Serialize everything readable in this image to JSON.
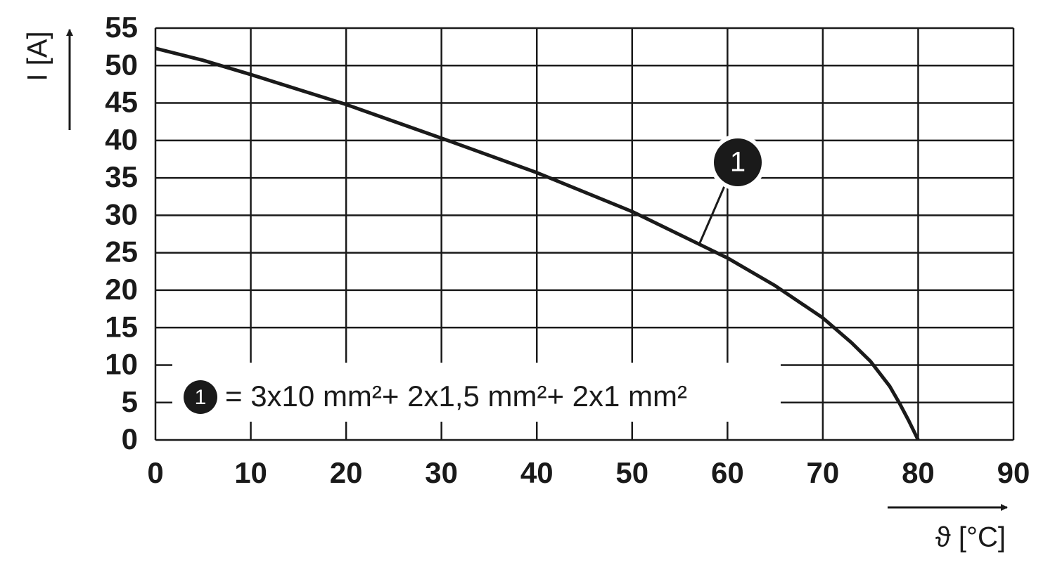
{
  "chart_data": {
    "type": "line",
    "x_label": "ϑ [°C]",
    "y_label": "I [A]",
    "xlim": [
      0,
      90
    ],
    "xticks": [
      0,
      10,
      20,
      30,
      40,
      50,
      60,
      70,
      80,
      90
    ],
    "ylim": [
      0,
      55
    ],
    "yticks": [
      0,
      5,
      10,
      15,
      20,
      25,
      30,
      35,
      40,
      45,
      50,
      55
    ],
    "grid": true,
    "x": [
      0,
      5,
      10,
      20,
      30,
      40,
      50,
      60,
      65,
      70,
      73,
      75,
      77,
      78,
      79,
      80
    ],
    "series": [
      {
        "name": "= 3x10 mm²+ 2x1,5 mm²+ 2x1 mm²",
        "marker_label": "1",
        "color": "#1a1a1a",
        "values": [
          52.3,
          50.7,
          48.8,
          44.8,
          40.3,
          35.7,
          30.5,
          24.3,
          20.6,
          16.3,
          13.0,
          10.5,
          7.2,
          5.0,
          2.6,
          0
        ]
      }
    ]
  }
}
